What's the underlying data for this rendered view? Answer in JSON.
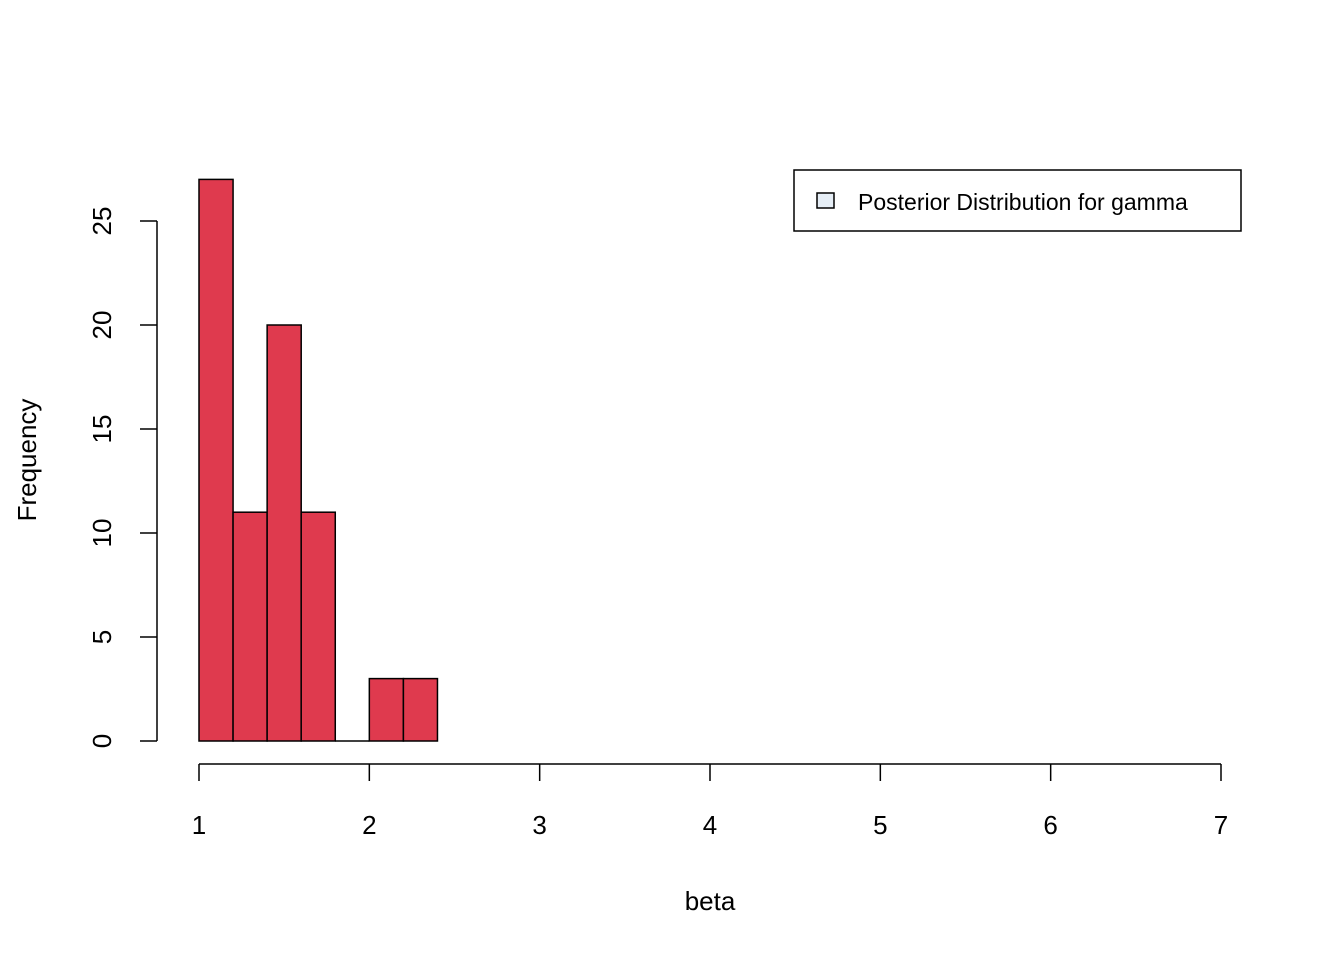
{
  "chart_data": {
    "type": "bar",
    "subtype": "histogram",
    "bins": [
      {
        "x0": 1.0,
        "x1": 1.2,
        "count": 27
      },
      {
        "x0": 1.2,
        "x1": 1.4,
        "count": 11
      },
      {
        "x0": 1.4,
        "x1": 1.6,
        "count": 20
      },
      {
        "x0": 1.6,
        "x1": 1.8,
        "count": 11
      },
      {
        "x0": 1.8,
        "x1": 2.0,
        "count": 0
      },
      {
        "x0": 2.0,
        "x1": 2.2,
        "count": 3
      },
      {
        "x0": 2.2,
        "x1": 2.4,
        "count": 3
      }
    ],
    "xlabel": "beta",
    "ylabel": "Frequency",
    "xlim": [
      1,
      7
    ],
    "ylim": [
      0,
      27
    ],
    "x_ticks": [
      1,
      2,
      3,
      4,
      5,
      6,
      7
    ],
    "y_ticks": [
      0,
      5,
      10,
      15,
      20,
      25
    ],
    "bar_color": "#DF3A4E",
    "grid": false,
    "legend": {
      "position": "top-right",
      "entries": [
        {
          "label": "Posterior Distribution for gamma",
          "color": "#E6EEF6"
        }
      ]
    }
  }
}
